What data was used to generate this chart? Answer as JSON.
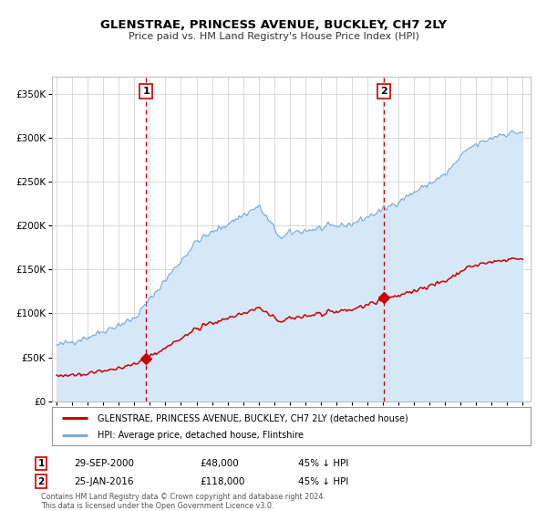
{
  "title": "GLENSTRAE, PRINCESS AVENUE, BUCKLEY, CH7 2LY",
  "subtitle": "Price paid vs. HM Land Registry's House Price Index (HPI)",
  "legend_line1": "GLENSTRAE, PRINCESS AVENUE, BUCKLEY, CH7 2LY (detached house)",
  "legend_line2": "HPI: Average price, detached house, Flintshire",
  "sale1_date": "29-SEP-2000",
  "sale1_price": 48000,
  "sale1_hpi": "45% ↓ HPI",
  "sale2_date": "25-JAN-2016",
  "sale2_price": 118000,
  "sale2_hpi": "45% ↓ HPI",
  "footer1": "Contains HM Land Registry data © Crown copyright and database right 2024.",
  "footer2": "This data is licensed under the Open Government Licence v3.0.",
  "red_color": "#cc0000",
  "blue_color": "#7aade0",
  "blue_fill": "#d6e8f7",
  "grid_color": "#cccccc",
  "vline_color": "#cc0000",
  "bg_color": "#ffffff",
  "ylim": [
    0,
    370000
  ],
  "yticks": [
    0,
    50000,
    100000,
    150000,
    200000,
    250000,
    300000,
    350000
  ],
  "ytick_labels": [
    "£0",
    "£50K",
    "£100K",
    "£150K",
    "£200K",
    "£250K",
    "£300K",
    "£350K"
  ],
  "sale1_x": 2000.75,
  "sale2_x": 2016.07,
  "sale1_y": 48000,
  "sale2_y": 118000,
  "xlim_left": 1994.7,
  "xlim_right": 2025.5
}
